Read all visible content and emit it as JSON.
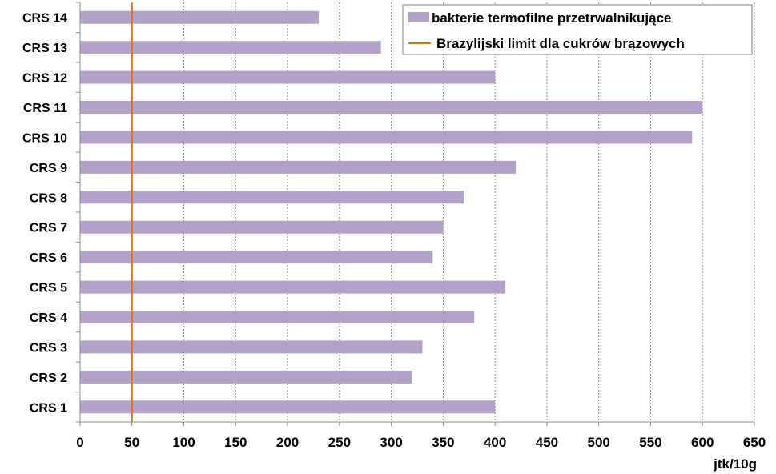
{
  "chart_data": {
    "type": "bar",
    "orientation": "horizontal",
    "categories": [
      "CRS 1",
      "CRS 2",
      "CRS 3",
      "CRS 4",
      "CRS 5",
      "CRS 6",
      "CRS 7",
      "CRS 8",
      "CRS 9",
      "CRS 10",
      "CRS 11",
      "CRS 12",
      "CRS 13",
      "CRS 14"
    ],
    "series": [
      {
        "name": "bakterie termofilne przetrwalnikujące",
        "color": "#b3a2c7",
        "values": [
          400,
          320,
          330,
          380,
          410,
          340,
          350,
          370,
          420,
          590,
          600,
          400,
          290,
          230
        ]
      }
    ],
    "reference_line": {
      "name": "Brazylijski limit dla cukrów brązowych",
      "value": 50,
      "color": "#e46c0a"
    },
    "xunit": "jtk/10g",
    "xlim": [
      0,
      650
    ],
    "xticks": [
      0,
      50,
      100,
      150,
      200,
      250,
      300,
      350,
      400,
      450,
      500,
      550,
      600,
      650
    ],
    "grid": "vertical dashed",
    "legend_position": "top-right"
  }
}
